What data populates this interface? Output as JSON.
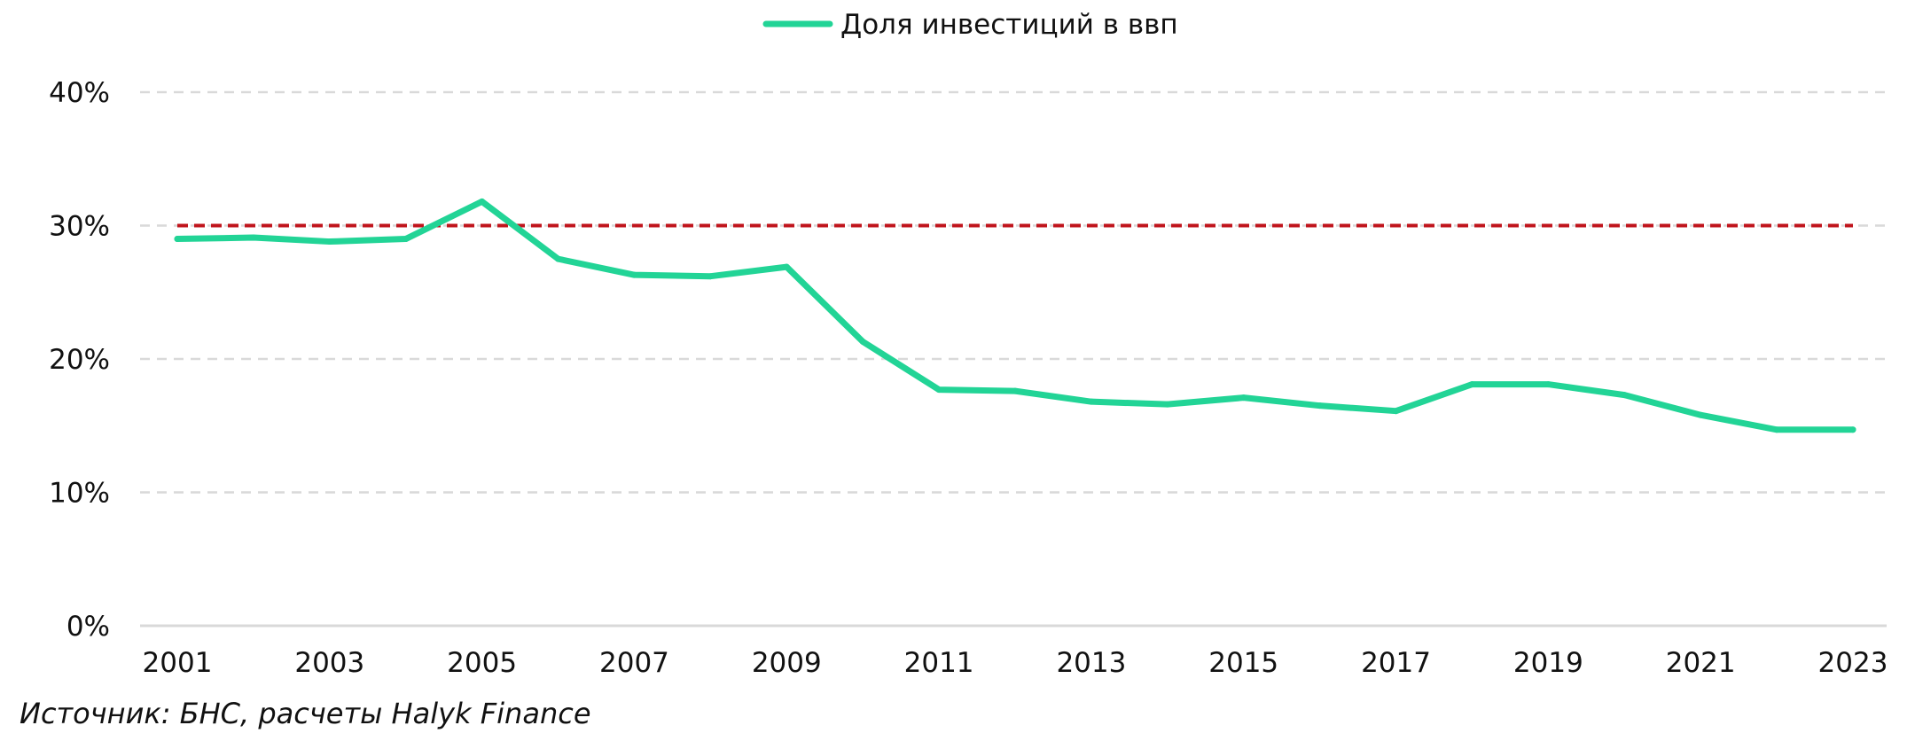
{
  "chart_data": {
    "type": "line",
    "title": "",
    "xlabel": "",
    "ylabel": "",
    "x": [
      2001,
      2002,
      2003,
      2004,
      2005,
      2006,
      2007,
      2008,
      2009,
      2010,
      2011,
      2012,
      2013,
      2014,
      2015,
      2016,
      2017,
      2018,
      2019,
      2020,
      2021,
      2022,
      2023
    ],
    "x_tick_labels": [
      "2001",
      "2003",
      "2005",
      "2007",
      "2009",
      "2011",
      "2013",
      "2015",
      "2017",
      "2019",
      "2021",
      "2023"
    ],
    "y_tick_labels": [
      "0%",
      "10%",
      "20%",
      "30%",
      "40%"
    ],
    "ylim": [
      0,
      40
    ],
    "series": [
      {
        "name": "Доля инвестиций в ввп",
        "color": "#22d496",
        "values": [
          29.0,
          29.1,
          28.8,
          29.0,
          31.8,
          27.5,
          26.3,
          26.2,
          26.9,
          21.3,
          17.7,
          17.6,
          16.8,
          16.6,
          17.1,
          16.5,
          16.1,
          18.1,
          18.1,
          17.3,
          15.8,
          14.7,
          14.7
        ]
      }
    ],
    "reference_line": {
      "value": 30,
      "color": "#c0141c",
      "style": "dashed"
    },
    "grid": true,
    "grid_style": "dashed",
    "legend_position": "top-center"
  },
  "source_note": "Источник: БНС, расчеты Halyk Finance"
}
